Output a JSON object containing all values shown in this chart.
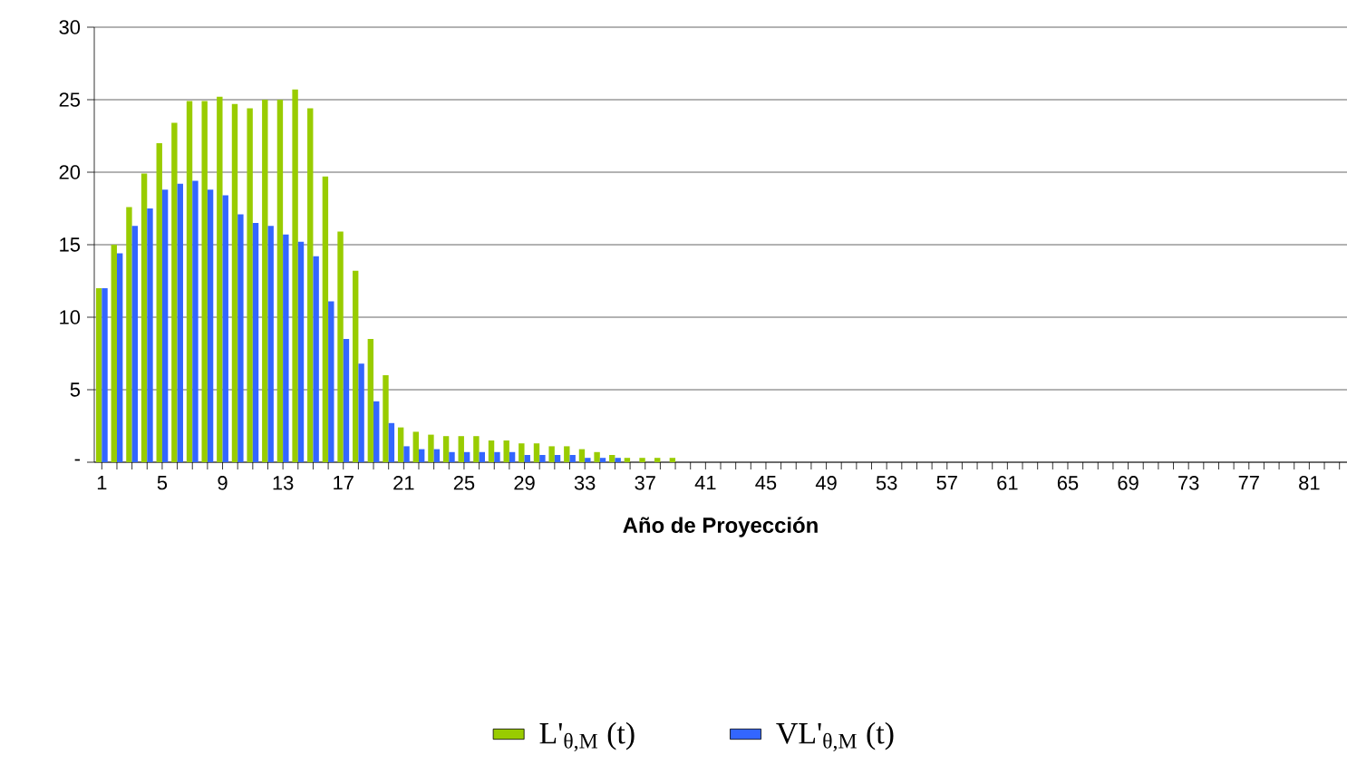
{
  "chart_data": {
    "type": "bar",
    "xlabel": "Año de Proyección",
    "categories": [
      "1",
      null,
      null,
      null,
      "5",
      null,
      null,
      null,
      "9",
      null,
      null,
      null,
      "13",
      null,
      null,
      null,
      "17",
      null,
      null,
      null,
      "21",
      null,
      null,
      null,
      "25",
      null,
      null,
      null,
      "29",
      null,
      null,
      null,
      "33",
      null,
      null,
      null,
      "37",
      null,
      null,
      null,
      "41",
      null,
      null,
      null,
      "45",
      null,
      null,
      null,
      "49",
      null,
      null,
      null,
      "53",
      null,
      null,
      null,
      "57",
      null,
      null,
      null,
      "61",
      null,
      null,
      null,
      "65",
      null,
      null,
      null,
      "69",
      null,
      null,
      null,
      "73",
      null,
      null,
      null,
      "77",
      null,
      null,
      null,
      "81",
      null,
      null
    ],
    "series": [
      {
        "name": "L'$_{θ,M}$ (t)",
        "color": "#99cc00",
        "values": [
          12,
          15,
          17.6,
          19.9,
          22,
          23.4,
          24.9,
          24.9,
          25.2,
          24.7,
          24.4,
          25,
          25,
          25.7,
          24.4,
          19.7,
          15.9,
          13.2,
          8.5,
          6,
          2.4,
          2.1,
          1.9,
          1.8,
          1.8,
          1.8,
          1.5,
          1.5,
          1.3,
          1.3,
          1.1,
          1.1,
          0.9,
          0.7,
          0.5,
          0.3,
          0.3,
          0.3,
          0.3,
          null,
          null,
          null,
          null,
          null,
          null,
          null,
          null,
          null,
          null,
          null,
          null,
          null,
          null,
          null,
          null,
          null,
          null,
          null,
          null,
          null,
          null,
          null,
          null,
          null,
          null,
          null,
          null,
          null,
          null,
          null,
          null,
          null,
          null,
          null,
          null,
          null,
          null,
          null,
          null,
          null,
          null,
          null,
          null
        ]
      },
      {
        "name": "VL'$_{θ,M}$ (t)",
        "color": "#3366ff",
        "values": [
          12,
          14.4,
          16.3,
          17.5,
          18.8,
          19.2,
          19.4,
          18.8,
          18.4,
          17.1,
          16.5,
          16.3,
          15.7,
          15.2,
          14.2,
          11.1,
          8.5,
          6.8,
          4.2,
          2.7,
          1.1,
          0.9,
          0.9,
          0.7,
          0.7,
          0.7,
          0.7,
          0.7,
          0.5,
          0.5,
          0.5,
          0.5,
          0.3,
          0.3,
          0.3,
          null,
          null,
          null,
          null,
          null,
          null,
          null,
          null,
          null,
          null,
          null,
          null,
          null,
          null,
          null,
          null,
          null,
          null,
          null,
          null,
          null,
          null,
          null,
          null,
          null,
          null,
          null,
          null,
          null,
          null,
          null,
          null,
          null,
          null,
          null,
          null,
          null,
          null,
          null,
          null,
          null,
          null,
          null,
          null,
          null,
          null,
          null,
          null
        ]
      }
    ],
    "ylim": [
      0,
      30
    ],
    "yticks": [
      {
        "value": 0,
        "label": "-"
      },
      5,
      10,
      15,
      20,
      25,
      30
    ],
    "grid": "y",
    "legend": "bottom"
  }
}
